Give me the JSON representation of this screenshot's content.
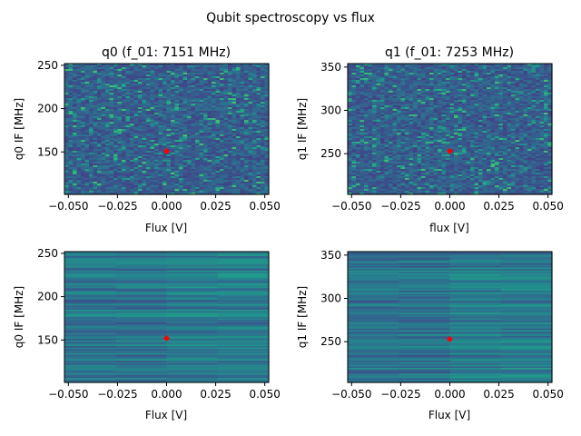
{
  "figure_title": "Qubit spectroscopy vs flux",
  "chart_data": [
    {
      "type": "heatmap",
      "title": "q0 (f_01: 7151 MHz)",
      "xlabel": "Flux [V]",
      "ylabel": "q0 IF [MHz]",
      "xlim": [
        -0.052,
        0.052
      ],
      "ylim": [
        101,
        252
      ],
      "xticks": [
        -0.05,
        -0.025,
        0,
        0.025,
        0.05
      ],
      "xtick_labels": [
        "−0.050",
        "−0.025",
        "0.000",
        "0.025",
        "0.050"
      ],
      "yticks": [
        150,
        200,
        250
      ],
      "ytick_labels": [
        "150",
        "200",
        "250"
      ],
      "colormap": "viridis",
      "pattern": "noise",
      "marker": {
        "x": 0.0,
        "y": 151,
        "color": "#ff0000"
      }
    },
    {
      "type": "heatmap",
      "title": "q1 (f_01: 7253 MHz)",
      "xlabel": "flux [V]",
      "ylabel": "q1 IF [MHz]",
      "xlim": [
        -0.052,
        0.052
      ],
      "ylim": [
        203,
        354
      ],
      "xticks": [
        -0.05,
        -0.025,
        0,
        0.025,
        0.05
      ],
      "xtick_labels": [
        "−0.050",
        "−0.025",
        "0.000",
        "0.025",
        "0.050"
      ],
      "yticks": [
        250,
        300,
        350
      ],
      "ytick_labels": [
        "250",
        "300",
        "350"
      ],
      "colormap": "viridis",
      "pattern": "noise",
      "marker": {
        "x": 0.0,
        "y": 253,
        "color": "#ff0000"
      }
    },
    {
      "type": "heatmap",
      "title": "",
      "xlabel": "Flux [V]",
      "ylabel": "q0 IF [MHz]",
      "xlim": [
        -0.052,
        0.052
      ],
      "ylim": [
        101,
        252
      ],
      "xticks": [
        -0.05,
        -0.025,
        0,
        0.025,
        0.05
      ],
      "xtick_labels": [
        "−0.050",
        "−0.025",
        "0.000",
        "0.025",
        "0.050"
      ],
      "yticks": [
        150,
        200,
        250
      ],
      "ytick_labels": [
        "150",
        "200",
        "250"
      ],
      "colormap": "viridis",
      "pattern": "horizontal-stripes",
      "marker": {
        "x": 0.0,
        "y": 152,
        "color": "#ff0000"
      }
    },
    {
      "type": "heatmap",
      "title": "",
      "xlabel": "Flux [V]",
      "ylabel": "q1 IF [MHz]",
      "xlim": [
        -0.052,
        0.052
      ],
      "ylim": [
        203,
        354
      ],
      "xticks": [
        -0.05,
        -0.025,
        0,
        0.025,
        0.05
      ],
      "xtick_labels": [
        "−0.050",
        "−0.025",
        "0.000",
        "0.025",
        "0.050"
      ],
      "yticks": [
        250,
        300,
        350
      ],
      "ytick_labels": [
        "250",
        "300",
        "350"
      ],
      "colormap": "viridis",
      "pattern": "horizontal-stripes",
      "marker": {
        "x": 0.0,
        "y": 253,
        "color": "#ff0000"
      }
    }
  ]
}
